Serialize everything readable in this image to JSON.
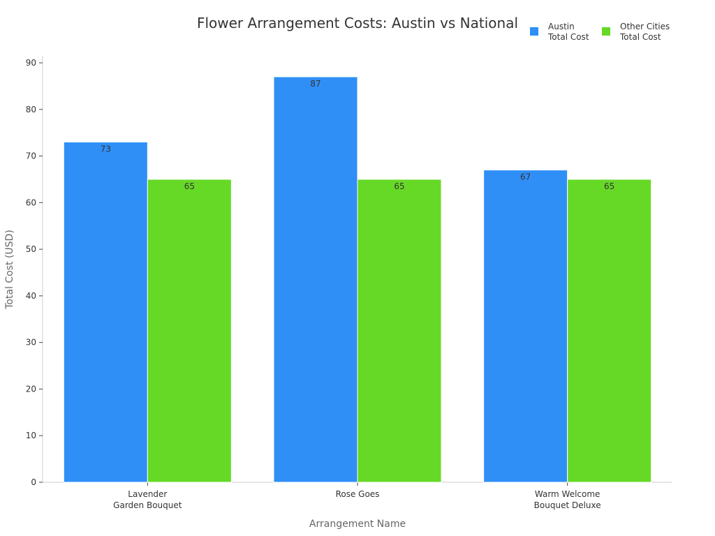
{
  "chart_data": {
    "type": "bar",
    "title": "Flower Arrangement Costs: Austin vs National",
    "xlabel": "Arrangement Name",
    "ylabel": "Total Cost (USD)",
    "categories": [
      [
        "Lavender",
        "Garden Bouquet"
      ],
      [
        "Rose Goes"
      ],
      [
        "Warm Welcome",
        "Bouquet Deluxe"
      ]
    ],
    "series": [
      {
        "name": [
          "Austin",
          "Total Cost"
        ],
        "color": "#2f8ff7",
        "values": [
          73,
          87,
          67
        ]
      },
      {
        "name": [
          "Other Cities",
          "Total Cost"
        ],
        "color": "#66d926",
        "values": [
          65,
          65,
          65
        ]
      }
    ],
    "ylim": [
      0,
      90
    ],
    "yticks": [
      0,
      10,
      20,
      30,
      40,
      50,
      60,
      70,
      80,
      90
    ],
    "grid": false,
    "legend_position": "top-right",
    "data_labels": true
  }
}
